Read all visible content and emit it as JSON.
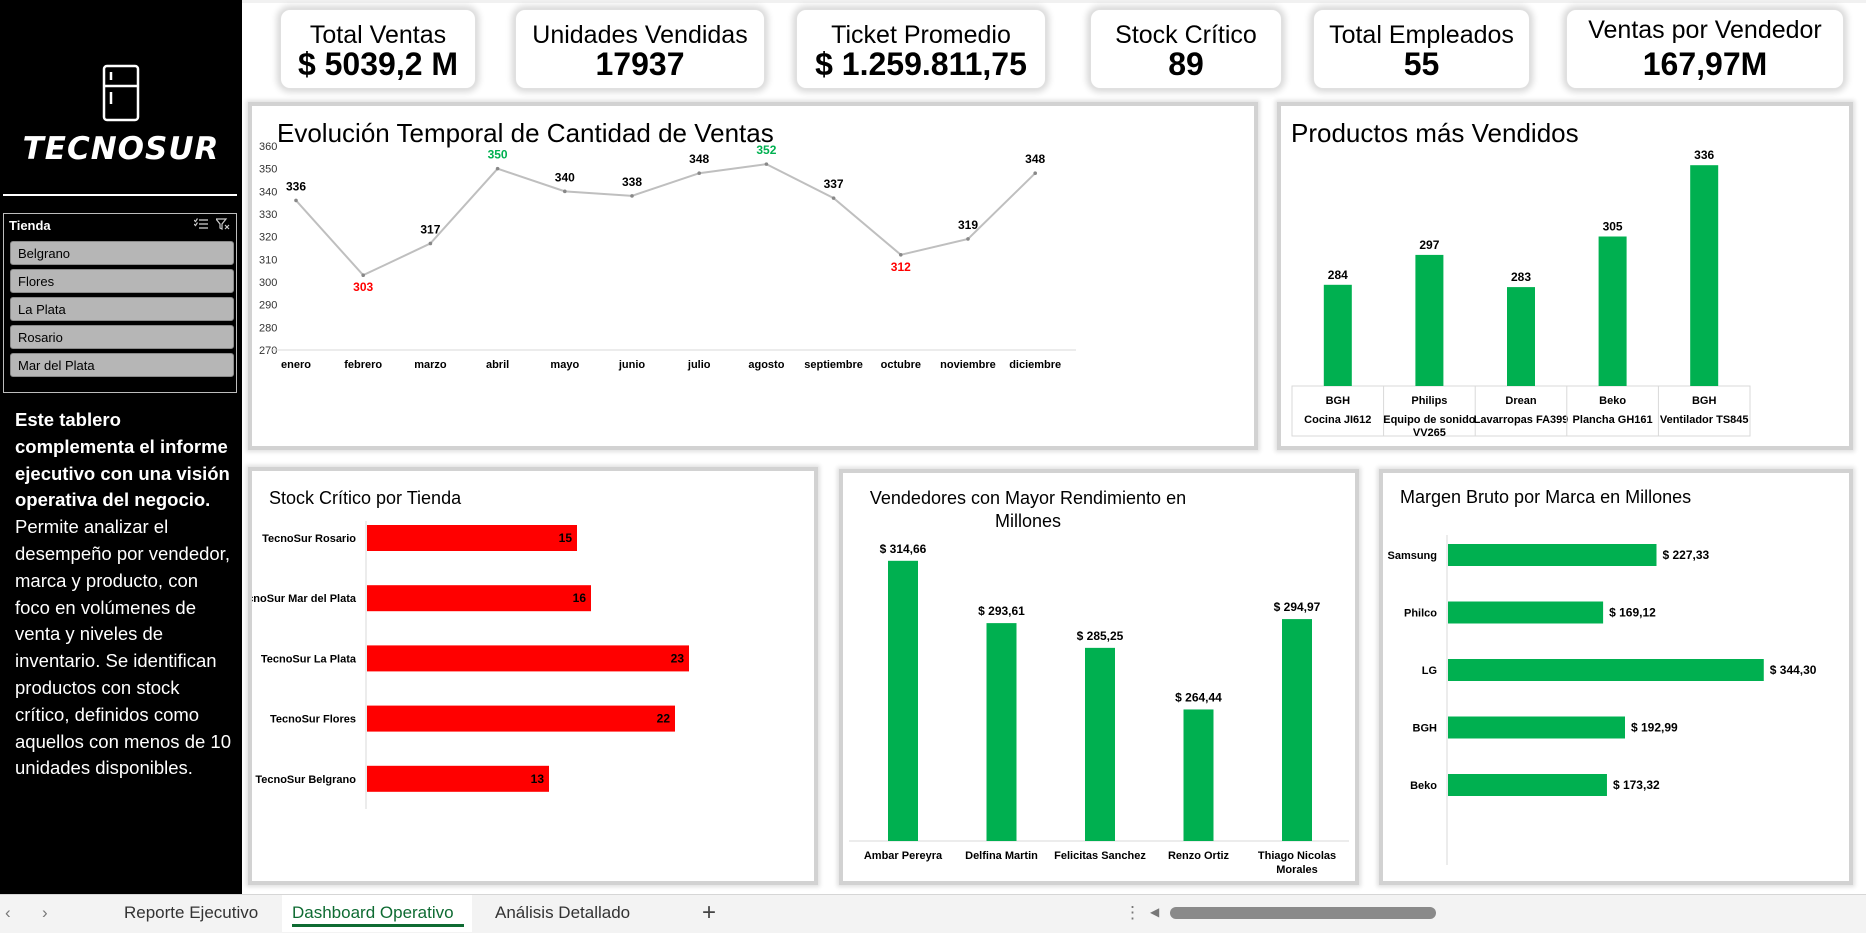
{
  "sidebar": {
    "logo_text": "TECNOSUR",
    "logo_icon": "refrigerator-icon",
    "slicer": {
      "title": "Tienda",
      "items": [
        "Belgrano",
        "Flores",
        "La Plata",
        "Rosario",
        "Mar del Plata"
      ]
    },
    "description_bold": "Este tablero complementa el informe ejecutivo con una visión operativa del negocio.",
    "description_rest": "Permite analizar el desempeño por vendedor, marca y producto, con foco en volúmenes de venta y niveles de inventario. Se identifican productos con stock crítico, definidos como aquellos con menos de 10 unidades disponibles."
  },
  "kpis": [
    {
      "title": "Total Ventas",
      "value": "$ 5039,2 M"
    },
    {
      "title": "Unidades Vendidas",
      "value": "17937"
    },
    {
      "title": "Ticket Promedio",
      "value": "$ 1.259.811,75"
    },
    {
      "title": "Stock Crítico",
      "value": "89"
    },
    {
      "title": "Total Empleados",
      "value": "55"
    },
    {
      "title": "Ventas por Vendedor",
      "value": "167,97M"
    }
  ],
  "panels": {
    "evolution_title": "Evolución Temporal de Cantidad de Ventas",
    "products_title": "Productos más Vendidos",
    "stock_title": "Stock Crítico por Tienda",
    "sellers_title_line1": "Vendedores con Mayor Rendimiento en",
    "sellers_title_line2": "Millones",
    "margin_title": "Margen Bruto por Marca en Millones"
  },
  "colors": {
    "green": "#00b050",
    "red": "#ff0000",
    "high_label": "#00b050",
    "low_label": "#ff0000",
    "line": "#bfbfbf"
  },
  "chart_data": [
    {
      "type": "line",
      "title": "Evolución Temporal de Cantidad de Ventas",
      "categories": [
        "enero",
        "febrero",
        "marzo",
        "abril",
        "mayo",
        "junio",
        "julio",
        "agosto",
        "septiembre",
        "octubre",
        "noviembre",
        "diciembre"
      ],
      "values": [
        336,
        303,
        317,
        350,
        340,
        338,
        348,
        352,
        337,
        312,
        319,
        348
      ],
      "ylim": [
        270,
        360
      ],
      "yticks": [
        270,
        280,
        290,
        300,
        310,
        320,
        330,
        340,
        350,
        360
      ],
      "highlight_high": [
        3,
        7
      ],
      "highlight_low": [
        1,
        9
      ],
      "grid": false
    },
    {
      "type": "bar",
      "title": "Productos más Vendidos",
      "categories": [
        {
          "brand": "BGH",
          "product": "Cocina JI612"
        },
        {
          "brand": "Philips",
          "product": "Equipo de sonido VV265"
        },
        {
          "brand": "Drean",
          "product": "Lavarropas FA399"
        },
        {
          "brand": "Beko",
          "product": "Plancha GH161"
        },
        {
          "brand": "BGH",
          "product": "Ventilador TS845"
        }
      ],
      "values": [
        284,
        297,
        283,
        305,
        336
      ],
      "ylim": [
        240,
        340
      ]
    },
    {
      "type": "bar",
      "orientation": "horizontal",
      "title": "Stock Crítico por Tienda",
      "categories": [
        "TecnoSur Rosario",
        "TecnoSur Mar del Plata",
        "TecnoSur La Plata",
        "TecnoSur Flores",
        "TecnoSur Belgrano"
      ],
      "values": [
        15,
        16,
        23,
        22,
        13
      ],
      "xlim": [
        0,
        24
      ]
    },
    {
      "type": "bar",
      "title": "Vendedores con Mayor Rendimiento en Millones",
      "categories": [
        "Ambar Pereyra",
        "Delfina Martin",
        "Felicitas Sanchez",
        "Renzo Ortiz",
        "Thiago Nicolas Morales"
      ],
      "values": [
        314.66,
        293.61,
        285.25,
        264.44,
        294.97
      ],
      "labels": [
        "$ 314,66",
        "$ 293,61",
        "$ 285,25",
        "$ 264,44",
        "$ 294,97"
      ],
      "ylim": [
        220,
        320
      ]
    },
    {
      "type": "bar",
      "orientation": "horizontal",
      "title": "Margen Bruto por Marca en Millones",
      "categories": [
        "Samsung",
        "Philco",
        "LG",
        "BGH",
        "Beko"
      ],
      "values": [
        227.33,
        169.12,
        344.3,
        192.99,
        173.32
      ],
      "labels": [
        "$ 227,33",
        "$ 169,12",
        "$ 344,30",
        "$ 192,99",
        "$ 173,32"
      ],
      "xlim": [
        0,
        350
      ]
    }
  ],
  "tabs": {
    "items": [
      "Reporte Ejecutivo",
      "Dashboard Operativo",
      "Análisis Detallado"
    ],
    "active_index": 1,
    "add_label": "+",
    "prev_label": "‹",
    "next_label": "›",
    "more_label": "⋮",
    "scroll_left_label": "◀"
  }
}
